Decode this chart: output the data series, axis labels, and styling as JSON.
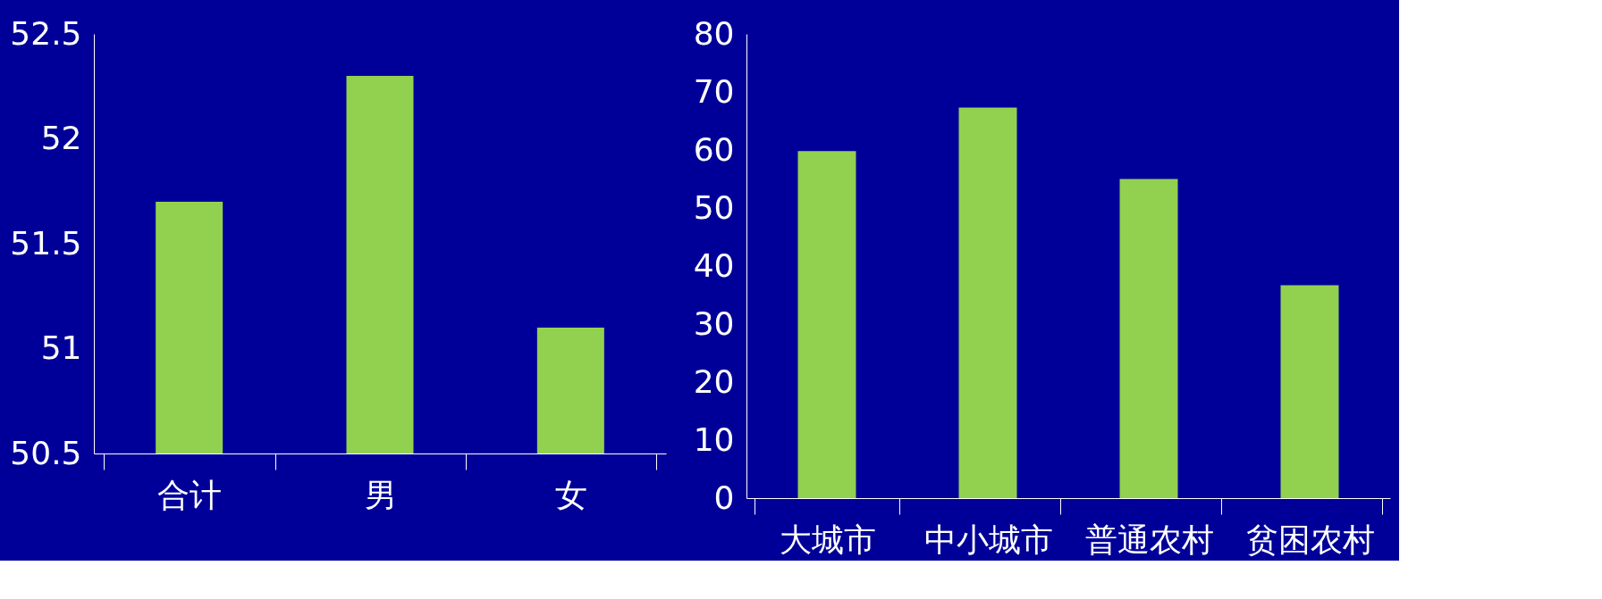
{
  "chart_data": [
    {
      "type": "bar",
      "categories": [
        "合计",
        "男",
        "女"
      ],
      "values": [
        51.7,
        52.3,
        51.1
      ],
      "color": "#92d050",
      "ylim": [
        50.5,
        52.5
      ],
      "yticks": [
        50.5,
        {
          "value": 51,
          "label": "51"
        },
        51.5,
        {
          "value": 52,
          "label": "52"
        },
        52.5
      ],
      "grid": false
    },
    {
      "type": "bar",
      "categories": [
        "大城市",
        "中小城市",
        "普通农村",
        "贫困农村"
      ],
      "values": [
        59.8,
        67.3,
        55.0,
        36.7
      ],
      "color": "#92d050",
      "ylim": [
        0,
        80
      ],
      "yticks": [
        0,
        10,
        20,
        30,
        40,
        50,
        60,
        70,
        80
      ],
      "grid": false
    }
  ]
}
